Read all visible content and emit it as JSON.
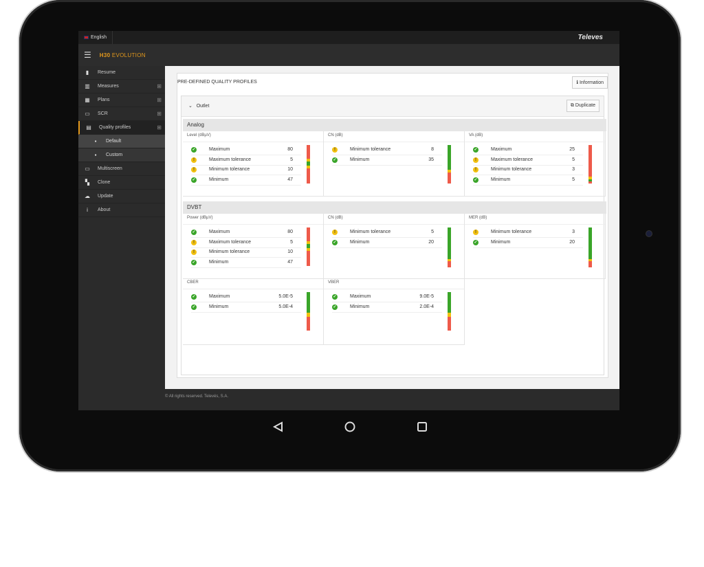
{
  "topbar": {
    "language": "English",
    "brand": "Televes"
  },
  "app": {
    "logo_prefix": "H30",
    "logo_suffix": "EVOLUTION"
  },
  "sidebar": {
    "items": [
      {
        "label": "Resume",
        "icon": "meter-icon"
      },
      {
        "label": "Measures",
        "icon": "bar-chart-icon",
        "expand": "⊞"
      },
      {
        "label": "Plans",
        "icon": "grid-icon",
        "expand": "⊞"
      },
      {
        "label": "SCR",
        "icon": "monitor-icon",
        "expand": "⊞"
      },
      {
        "label": "Quality profiles",
        "icon": "profile-check-icon",
        "expand": "⊞"
      },
      {
        "label": "Default",
        "icon": "doc-icon"
      },
      {
        "label": "Custom",
        "icon": "doc-icon"
      },
      {
        "label": "Multiscreen",
        "icon": "screens-icon"
      },
      {
        "label": "Clone",
        "icon": "clone-icon"
      },
      {
        "label": "Update",
        "icon": "cloud-upload-icon"
      },
      {
        "label": "About",
        "icon": "info-icon"
      }
    ]
  },
  "main": {
    "title": "PRE-DEFINED QUALITY PROFILES",
    "info_button": "Information",
    "outlet": {
      "label": "Outlet",
      "duplicate_button": "Duplicate"
    }
  },
  "analog": {
    "title": "Analog",
    "cells": [
      {
        "label": "Level (dBµV)",
        "rows": [
          {
            "status": "ok",
            "name": "Maximum",
            "value": "80"
          },
          {
            "status": "warn",
            "name": "Maximum tolerance",
            "value": "5"
          },
          {
            "status": "warn",
            "name": "Minimum tolerance",
            "value": "10"
          },
          {
            "status": "ok",
            "name": "Minimum",
            "value": "47"
          }
        ]
      },
      {
        "label": "CN (dB)",
        "rows": [
          {
            "status": "warn",
            "name": "Minimum tolerance",
            "value": "8"
          },
          {
            "status": "ok",
            "name": "Minimum",
            "value": "35"
          }
        ]
      },
      {
        "label": "VA (dB)",
        "rows": [
          {
            "status": "ok",
            "name": "Maximum",
            "value": "25"
          },
          {
            "status": "warn",
            "name": "Maximum tolerance",
            "value": "5"
          },
          {
            "status": "warn",
            "name": "Minimum tolerance",
            "value": "3"
          },
          {
            "status": "ok",
            "name": "Minimum",
            "value": "5"
          }
        ]
      }
    ]
  },
  "dvbt": {
    "title": "DVBT",
    "cells": [
      {
        "label": "Power (dBµV)",
        "rows": [
          {
            "status": "ok",
            "name": "Maximum",
            "value": "80"
          },
          {
            "status": "warn",
            "name": "Maximum tolerance",
            "value": "5"
          },
          {
            "status": "warn",
            "name": "Minimum tolerance",
            "value": "10"
          },
          {
            "status": "ok",
            "name": "Minimum",
            "value": "47"
          }
        ]
      },
      {
        "label": "CN (dB)",
        "rows": [
          {
            "status": "warn",
            "name": "Minimum tolerance",
            "value": "5"
          },
          {
            "status": "ok",
            "name": "Minimum",
            "value": "20"
          }
        ]
      },
      {
        "label": "MER (dB)",
        "rows": [
          {
            "status": "warn",
            "name": "Minimum tolerance",
            "value": "3"
          },
          {
            "status": "ok",
            "name": "Minimum",
            "value": "20"
          }
        ]
      },
      {
        "label": "CBER",
        "rows": [
          {
            "status": "ok",
            "name": "Maximum",
            "value": "5.0E-5"
          },
          {
            "status": "ok",
            "name": "Minimum",
            "value": "5.0E-4"
          }
        ]
      },
      {
        "label": "VBER",
        "rows": [
          {
            "status": "ok",
            "name": "Maximum",
            "value": "9.0E-5"
          },
          {
            "status": "ok",
            "name": "Minimum",
            "value": "2.0E-4"
          }
        ]
      }
    ]
  },
  "footer": {
    "text": "© All rights reserved. Televés, S.A."
  }
}
